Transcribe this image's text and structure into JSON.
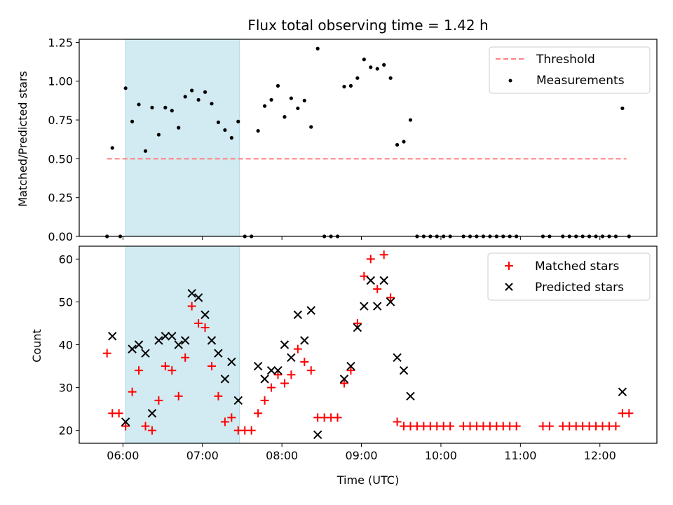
{
  "chart_data": {
    "type": "scatter",
    "title": "Flux total observing time = 1.42 h",
    "shaded_interval": [
      "06:02",
      "07:28"
    ],
    "colors": {
      "shade": "#add8e6",
      "threshold": "#ff8080",
      "matched": "#ff0000",
      "predicted": "#000000",
      "measurement": "#000000"
    },
    "x_axis": {
      "label": "Time (UTC)",
      "ticks": [
        "06:00",
        "07:00",
        "08:00",
        "09:00",
        "10:00",
        "11:00",
        "12:00"
      ],
      "range": [
        "05:27",
        "12:43"
      ]
    },
    "top_panel": {
      "ylabel": "Matched/Predicted stars",
      "ylim": [
        0,
        1.27
      ],
      "yticks": [
        "0.00",
        "0.25",
        "0.50",
        "0.75",
        "1.00",
        "1.25"
      ],
      "threshold": {
        "name": "Threshold",
        "value": 0.5,
        "x_range": [
          "05:48",
          "12:20"
        ]
      },
      "series_name": "Measurements",
      "points": [
        [
          "05:48",
          0
        ],
        [
          "05:52",
          0.57
        ],
        [
          "05:58",
          0
        ],
        [
          "06:02",
          0.955
        ],
        [
          "06:07",
          0.74
        ],
        [
          "06:12",
          0.85
        ],
        [
          "06:17",
          0.55
        ],
        [
          "06:22",
          0.83
        ],
        [
          "06:27",
          0.655
        ],
        [
          "06:32",
          0.83
        ],
        [
          "06:37",
          0.81
        ],
        [
          "06:42",
          0.7
        ],
        [
          "06:47",
          0.9
        ],
        [
          "06:52",
          0.94
        ],
        [
          "06:57",
          0.88
        ],
        [
          "07:02",
          0.93
        ],
        [
          "07:07",
          0.855
        ],
        [
          "07:12",
          0.735
        ],
        [
          "07:17",
          0.685
        ],
        [
          "07:22",
          0.635
        ],
        [
          "07:27",
          0.74
        ],
        [
          "07:32",
          0
        ],
        [
          "07:37",
          0
        ],
        [
          "07:42",
          0.68
        ],
        [
          "07:47",
          0.84
        ],
        [
          "07:52",
          0.88
        ],
        [
          "07:57",
          0.97
        ],
        [
          "08:02",
          0.77
        ],
        [
          "08:07",
          0.89
        ],
        [
          "08:12",
          0.825
        ],
        [
          "08:17",
          0.875
        ],
        [
          "08:22",
          0.705
        ],
        [
          "08:27",
          1.21
        ],
        [
          "08:32",
          0
        ],
        [
          "08:37",
          0
        ],
        [
          "08:42",
          0
        ],
        [
          "08:47",
          0.965
        ],
        [
          "08:52",
          0.97
        ],
        [
          "08:57",
          1.02
        ],
        [
          "09:02",
          1.14
        ],
        [
          "09:07",
          1.09
        ],
        [
          "09:12",
          1.08
        ],
        [
          "09:17",
          1.105
        ],
        [
          "09:22",
          1.02
        ],
        [
          "09:27",
          0.59
        ],
        [
          "09:32",
          0.61
        ],
        [
          "09:37",
          0.75
        ],
        [
          "09:42",
          0
        ],
        [
          "09:47",
          0
        ],
        [
          "09:52",
          0
        ],
        [
          "09:57",
          0
        ],
        [
          "10:02",
          0
        ],
        [
          "10:07",
          0
        ],
        [
          "10:17",
          0
        ],
        [
          "10:22",
          0
        ],
        [
          "10:27",
          0
        ],
        [
          "10:32",
          0
        ],
        [
          "10:37",
          0
        ],
        [
          "10:42",
          0
        ],
        [
          "10:47",
          0
        ],
        [
          "10:52",
          0
        ],
        [
          "10:57",
          0
        ],
        [
          "11:17",
          0
        ],
        [
          "11:22",
          0
        ],
        [
          "11:32",
          0
        ],
        [
          "11:37",
          0
        ],
        [
          "11:42",
          0
        ],
        [
          "11:47",
          0
        ],
        [
          "11:52",
          0
        ],
        [
          "11:57",
          0
        ],
        [
          "12:02",
          0
        ],
        [
          "12:07",
          0
        ],
        [
          "12:12",
          0
        ],
        [
          "12:17",
          0.825
        ],
        [
          "12:22",
          0
        ]
      ]
    },
    "bottom_panel": {
      "ylabel": "Count",
      "ylim": [
        17,
        63
      ],
      "yticks": [
        "20",
        "30",
        "40",
        "50",
        "60"
      ],
      "matched": {
        "name": "Matched stars",
        "points": [
          [
            "05:48",
            38
          ],
          [
            "05:52",
            24
          ],
          [
            "05:57",
            24
          ],
          [
            "06:02",
            21
          ],
          [
            "06:07",
            29
          ],
          [
            "06:12",
            34
          ],
          [
            "06:17",
            21
          ],
          [
            "06:22",
            20
          ],
          [
            "06:27",
            27
          ],
          [
            "06:32",
            35
          ],
          [
            "06:37",
            34
          ],
          [
            "06:42",
            28
          ],
          [
            "06:47",
            37
          ],
          [
            "06:52",
            49
          ],
          [
            "06:57",
            45
          ],
          [
            "07:02",
            44
          ],
          [
            "07:07",
            35
          ],
          [
            "07:12",
            28
          ],
          [
            "07:17",
            22
          ],
          [
            "07:22",
            23
          ],
          [
            "07:27",
            20
          ],
          [
            "07:32",
            20
          ],
          [
            "07:37",
            20
          ],
          [
            "07:42",
            24
          ],
          [
            "07:47",
            27
          ],
          [
            "07:52",
            30
          ],
          [
            "07:57",
            33
          ],
          [
            "08:02",
            31
          ],
          [
            "08:07",
            33
          ],
          [
            "08:12",
            39
          ],
          [
            "08:17",
            36
          ],
          [
            "08:22",
            34
          ],
          [
            "08:27",
            23
          ],
          [
            "08:32",
            23
          ],
          [
            "08:37",
            23
          ],
          [
            "08:42",
            23
          ],
          [
            "08:47",
            31
          ],
          [
            "08:52",
            34
          ],
          [
            "08:57",
            45
          ],
          [
            "09:02",
            56
          ],
          [
            "09:07",
            60
          ],
          [
            "09:12",
            53
          ],
          [
            "09:17",
            61
          ],
          [
            "09:22",
            51
          ],
          [
            "09:27",
            22
          ],
          [
            "09:32",
            21
          ],
          [
            "09:37",
            21
          ],
          [
            "09:42",
            21
          ],
          [
            "09:47",
            21
          ],
          [
            "09:52",
            21
          ],
          [
            "09:57",
            21
          ],
          [
            "10:02",
            21
          ],
          [
            "10:07",
            21
          ],
          [
            "10:17",
            21
          ],
          [
            "10:22",
            21
          ],
          [
            "10:27",
            21
          ],
          [
            "10:32",
            21
          ],
          [
            "10:37",
            21
          ],
          [
            "10:42",
            21
          ],
          [
            "10:47",
            21
          ],
          [
            "10:52",
            21
          ],
          [
            "10:57",
            21
          ],
          [
            "11:17",
            21
          ],
          [
            "11:22",
            21
          ],
          [
            "11:32",
            21
          ],
          [
            "11:37",
            21
          ],
          [
            "11:42",
            21
          ],
          [
            "11:47",
            21
          ],
          [
            "11:52",
            21
          ],
          [
            "11:57",
            21
          ],
          [
            "12:02",
            21
          ],
          [
            "12:07",
            21
          ],
          [
            "12:12",
            21
          ],
          [
            "12:17",
            24
          ],
          [
            "12:22",
            24
          ]
        ]
      },
      "predicted": {
        "name": "Predicted stars",
        "points": [
          [
            "05:52",
            42
          ],
          [
            "06:02",
            22
          ],
          [
            "06:07",
            39
          ],
          [
            "06:12",
            40
          ],
          [
            "06:17",
            38
          ],
          [
            "06:22",
            24
          ],
          [
            "06:27",
            41
          ],
          [
            "06:32",
            42
          ],
          [
            "06:37",
            42
          ],
          [
            "06:42",
            40
          ],
          [
            "06:47",
            41
          ],
          [
            "06:52",
            52
          ],
          [
            "06:57",
            51
          ],
          [
            "07:02",
            47
          ],
          [
            "07:07",
            41
          ],
          [
            "07:12",
            38
          ],
          [
            "07:17",
            32
          ],
          [
            "07:22",
            36
          ],
          [
            "07:27",
            27
          ],
          [
            "07:42",
            35
          ],
          [
            "07:47",
            32
          ],
          [
            "07:52",
            34
          ],
          [
            "07:57",
            34
          ],
          [
            "08:02",
            40
          ],
          [
            "08:07",
            37
          ],
          [
            "08:12",
            47
          ],
          [
            "08:17",
            41
          ],
          [
            "08:22",
            48
          ],
          [
            "08:27",
            19
          ],
          [
            "08:47",
            32
          ],
          [
            "08:52",
            35
          ],
          [
            "08:57",
            44
          ],
          [
            "09:02",
            49
          ],
          [
            "09:07",
            55
          ],
          [
            "09:12",
            49
          ],
          [
            "09:17",
            55
          ],
          [
            "09:22",
            50
          ],
          [
            "09:27",
            37
          ],
          [
            "09:32",
            34
          ],
          [
            "09:37",
            28
          ],
          [
            "12:17",
            29
          ]
        ]
      }
    }
  }
}
